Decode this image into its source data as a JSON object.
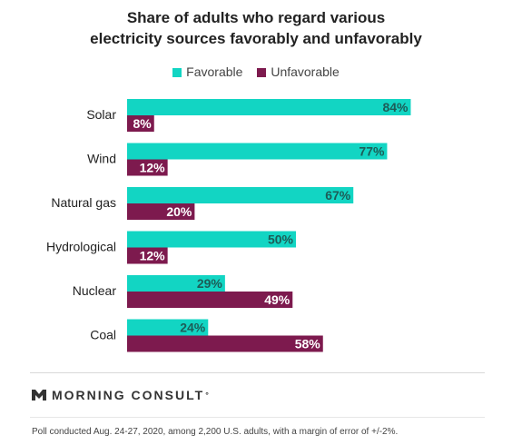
{
  "chart_data": {
    "type": "bar",
    "orientation": "horizontal",
    "title_lines": [
      "Share of adults who regard various",
      "electricity sources favorably and unfavorably"
    ],
    "categories": [
      "Solar",
      "Wind",
      "Natural gas",
      "Hydrological",
      "Nuclear",
      "Coal"
    ],
    "series": [
      {
        "name": "Favorable",
        "color": "#12d5c3",
        "label_color": "#1d5c57",
        "values": [
          84,
          77,
          67,
          50,
          29,
          24
        ]
      },
      {
        "name": "Unfavorable",
        "color": "#7d1a4e",
        "label_color": "#ffffff",
        "values": [
          8,
          12,
          20,
          12,
          49,
          58
        ]
      }
    ],
    "value_suffix": "%",
    "xlim": [
      0,
      100
    ],
    "legend_position": "top-center",
    "grid": false
  },
  "brand": {
    "name": "MORNING CONSULT",
    "mark": "°"
  },
  "footnote": "Poll conducted Aug. 24-27, 2020, among 2,200 U.S. adults, with a margin of error of +/-2%."
}
